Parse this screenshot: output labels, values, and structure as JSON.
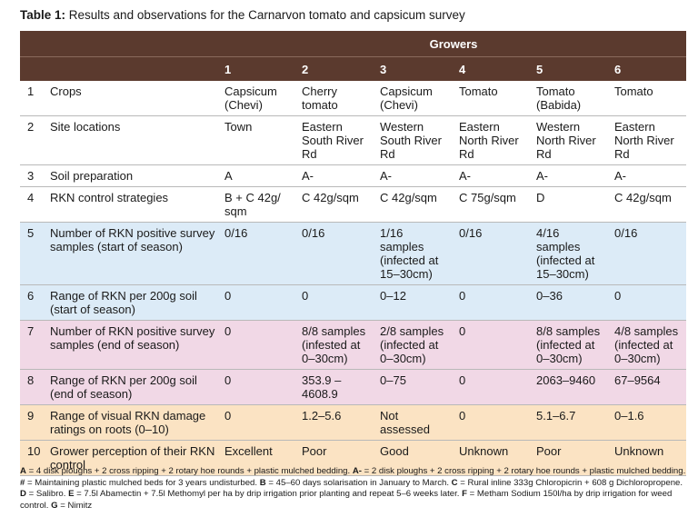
{
  "title": {
    "bold": "Table 1:",
    "text": "Results and observations for the Carnarvon tomato and capsicum survey"
  },
  "table": {
    "group_header": "Growers",
    "grower_columns": [
      "1",
      "2",
      "3",
      "4",
      "5",
      "6"
    ],
    "rows": [
      {
        "num": "1",
        "label": "Crops",
        "values": [
          "Capsicum (Chevi)",
          "Cherry tomato",
          "Capsicum (Chevi)",
          "Tomato",
          "Tomato (Babida)",
          "Tomato"
        ],
        "bg": "white"
      },
      {
        "num": "2",
        "label": "Site locations",
        "values": [
          "Town",
          "Eastern South River Rd",
          "Western South River Rd",
          "Eastern North River Rd",
          "Western North River Rd",
          "Eastern North River Rd"
        ],
        "bg": "white"
      },
      {
        "num": "3",
        "label": "Soil preparation",
        "values": [
          "A",
          "A-",
          "A-",
          "A-",
          "A-",
          "A-"
        ],
        "bg": "white"
      },
      {
        "num": "4",
        "label": "RKN control strategies",
        "values": [
          "B + C 42g/ sqm",
          "C 42g/sqm",
          "C 42g/sqm",
          "C 75g/sqm",
          "D",
          "C 42g/sqm"
        ],
        "bg": "white"
      },
      {
        "num": "5",
        "label": "Number of RKN positive survey samples (start of season)",
        "values": [
          "0/16",
          "0/16",
          "1/16 samples (infected at 15–30cm)",
          "0/16",
          "4/16 samples (infected at 15–30cm)",
          "0/16"
        ],
        "bg": "blue"
      },
      {
        "num": "6",
        "label": "Range of RKN per 200g soil (start of season)",
        "values": [
          "0",
          "0",
          "0–12",
          "0",
          "0–36",
          "0"
        ],
        "bg": "blue"
      },
      {
        "num": "7",
        "label": "Number of RKN positive survey samples (end of season)",
        "values": [
          "0",
          "8/8 samples (infested at 0–30cm)",
          "2/8 samples (infected at 0–30cm)",
          "0",
          "8/8 samples (infected at 0–30cm)",
          "4/8 samples (infected at 0–30cm)"
        ],
        "bg": "pink"
      },
      {
        "num": "8",
        "label": "Range of RKN per 200g soil (end of season)",
        "values": [
          "0",
          "353.9 – 4608.9",
          "0–75",
          "0",
          "2063–9460",
          "67–9564"
        ],
        "bg": "pink"
      },
      {
        "num": "9",
        "label": "Range of visual RKN damage ratings on roots (0–10)",
        "values": [
          "0",
          "1.2–5.6",
          "Not assessed",
          "0",
          "5.1–6.7",
          "0–1.6"
        ],
        "bg": "orange"
      },
      {
        "num": "10",
        "label": "Grower perception of their RKN control",
        "values": [
          "Excellent",
          "Poor",
          "Good",
          "Unknown",
          "Poor",
          "Unknown"
        ],
        "bg": "orange"
      }
    ]
  },
  "footnote": [
    {
      "key": "A",
      "text": " = 4 disk ploughs + 2 cross ripping + 2 rotary hoe rounds + plastic mulched bedding. "
    },
    {
      "key": "A-",
      "text": " = 2 disk ploughs + 2 cross ripping + 2 rotary hoe rounds + plastic mulched bedding. "
    },
    {
      "key": "#",
      "text": " = Maintaining plastic mulched beds for 3 years undisturbed. "
    },
    {
      "key": "B",
      "text": " = 45–60 days solarisation in January to March. "
    },
    {
      "key": "C",
      "text": " = Rural inline 333g Chloropicrin + 608 g Dichloropropene. "
    },
    {
      "key": "D",
      "text": " = Salibro. "
    },
    {
      "key": "E",
      "text": " = 7.5l Abamectin + 7.5l Methomyl per ha by drip irrigation prior planting and repeat 5–6 weeks later. "
    },
    {
      "key": "F",
      "text": " = Metham Sodium 150l/ha by drip irrigation for weed control. "
    },
    {
      "key": "G",
      "text": " = Nimitz"
    }
  ],
  "colors": {
    "header_bg": "#5b3a2e",
    "blue_rows": "#dcebf7",
    "pink_rows": "#f1d8e6",
    "orange_rows": "#fbe3c3"
  }
}
